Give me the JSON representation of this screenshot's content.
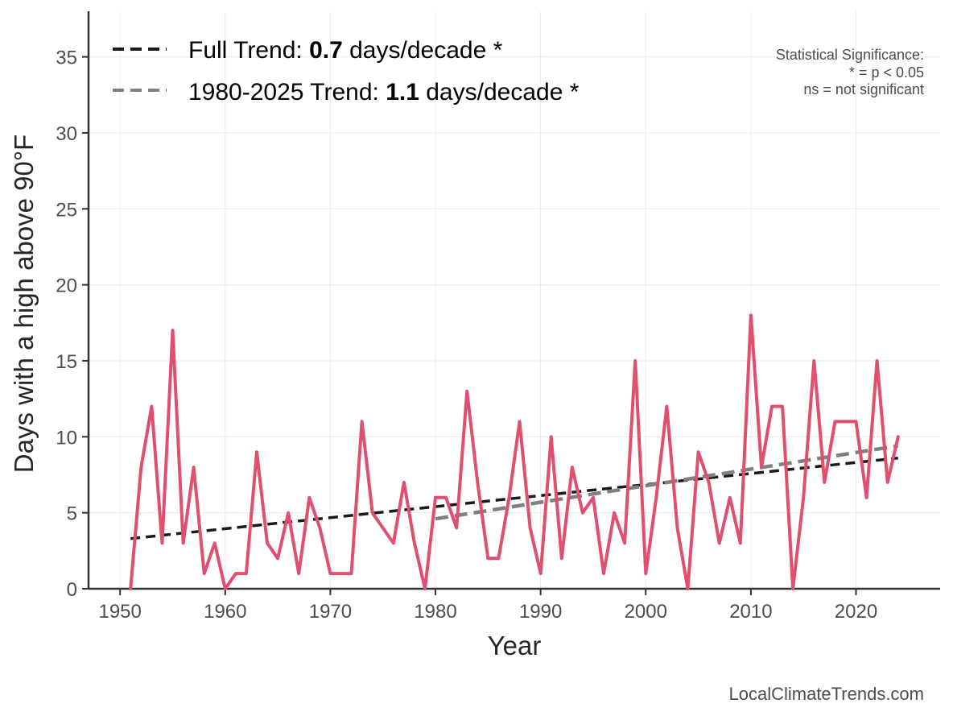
{
  "chart_data": {
    "type": "line",
    "xlabel": "Year",
    "ylabel": "Days with a high above 90°F",
    "xlim": [
      1947,
      2028
    ],
    "ylim": [
      0,
      38
    ],
    "xticks": [
      1950,
      1960,
      1970,
      1980,
      1990,
      2000,
      2010,
      2020
    ],
    "yticks": [
      0,
      5,
      10,
      15,
      20,
      25,
      30,
      35
    ],
    "grid": true,
    "series": [
      {
        "color": "#e0506e",
        "x": [
          1951,
          1952,
          1953,
          1954,
          1955,
          1956,
          1957,
          1958,
          1959,
          1960,
          1961,
          1962,
          1963,
          1964,
          1965,
          1966,
          1967,
          1968,
          1969,
          1970,
          1971,
          1972,
          1973,
          1974,
          1975,
          1976,
          1977,
          1978,
          1979,
          1980,
          1981,
          1982,
          1983,
          1984,
          1985,
          1986,
          1987,
          1988,
          1989,
          1990,
          1991,
          1992,
          1993,
          1994,
          1995,
          1996,
          1997,
          1998,
          1999,
          2000,
          2001,
          2002,
          2003,
          2004,
          2005,
          2006,
          2007,
          2008,
          2009,
          2010,
          2011,
          2012,
          2013,
          2014,
          2015,
          2016,
          2017,
          2018,
          2019,
          2020,
          2021,
          2022,
          2023,
          2024
        ],
        "values": [
          0,
          8,
          12,
          3,
          17,
          3,
          8,
          1,
          3,
          0,
          1,
          1,
          9,
          3,
          2,
          5,
          1,
          6,
          4,
          1,
          1,
          1,
          11,
          5,
          4,
          3,
          7,
          3,
          0,
          6,
          6,
          4,
          13,
          7,
          2,
          2,
          6,
          11,
          4,
          1,
          10,
          2,
          8,
          5,
          6,
          1,
          5,
          3,
          15,
          1,
          6,
          12,
          4,
          0,
          9,
          7,
          3,
          6,
          3,
          18,
          8,
          12,
          12,
          0,
          6,
          15,
          7,
          11,
          11,
          11,
          6,
          15,
          7,
          10
        ]
      }
    ],
    "trends": [
      {
        "name": "Full Trend",
        "rate": "0.7",
        "unit": "days/decade *",
        "color": "#1a1a1a",
        "x": [
          1951,
          2024
        ],
        "values": [
          3.3,
          8.6
        ]
      },
      {
        "name": "1980-2025 Trend",
        "rate": "1.1",
        "unit": "days/decade *",
        "color": "#808080",
        "x": [
          1980,
          2024
        ],
        "values": [
          4.6,
          9.4
        ]
      }
    ],
    "legend_position": "top-left",
    "annotation": {
      "line1": "Statistical Significance:",
      "line2": "* = p < 0.05",
      "line3": "ns = not significant"
    }
  },
  "source": "LocalClimateTrends.com"
}
